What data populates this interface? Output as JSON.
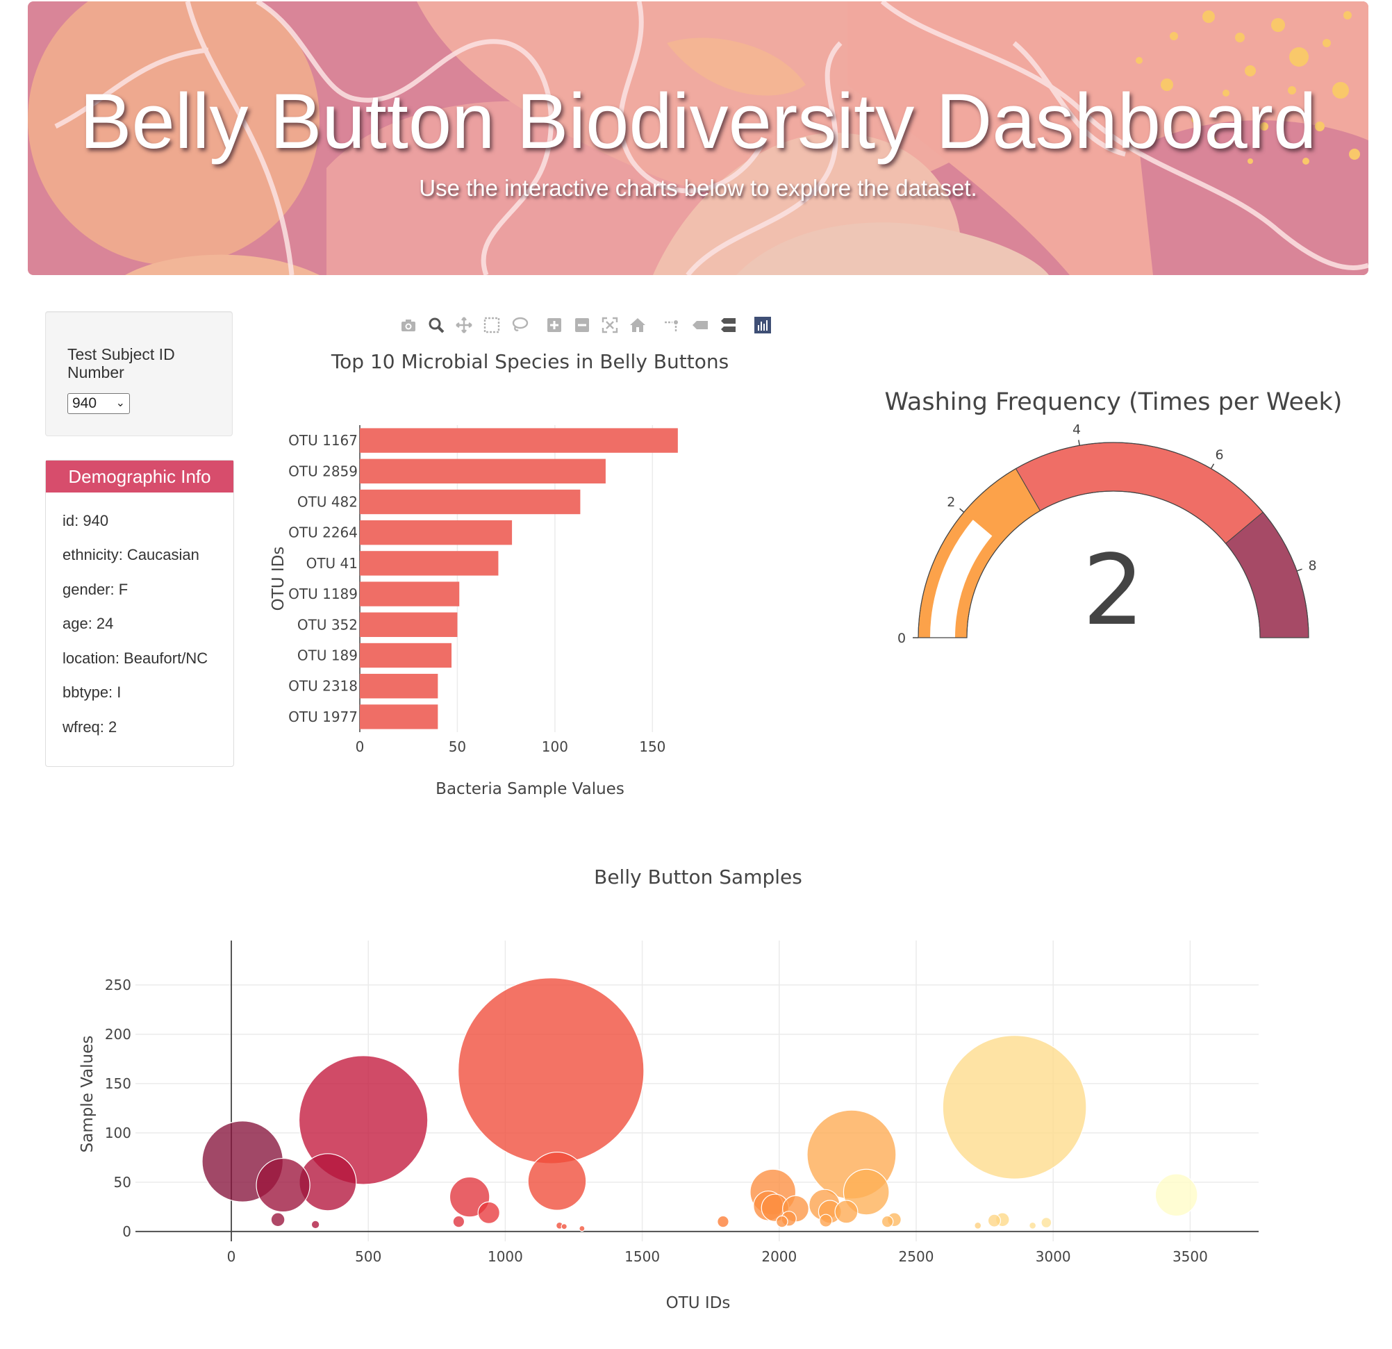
{
  "header": {
    "title": "Belly Button Biodiversity Dashboard",
    "subtitle": "Use the interactive charts below to explore the dataset."
  },
  "selector": {
    "label": "Test Subject ID Number",
    "selected": "940"
  },
  "demographics": {
    "title": "Demographic Info",
    "rows": [
      "id: 940",
      "ethnicity: Caucasian",
      "gender: F",
      "age: 24",
      "location: Beaufort/NC",
      "bbtype: I",
      "wfreq: 2"
    ]
  },
  "modebar": {
    "icons": [
      "camera-icon",
      "zoom-icon",
      "pan-icon",
      "box-select-icon",
      "lasso-select-icon",
      "zoom-in-icon",
      "zoom-out-icon",
      "autoscale-icon",
      "reset-axes-icon",
      "spike-lines-icon",
      "hover-closest-icon",
      "hover-compare-icon",
      "plotly-logo-icon"
    ]
  },
  "colors": {
    "bar": "#ef6e66",
    "banner_pink": "#d98598",
    "panel_header": "#d74d6c",
    "gauge_steps": [
      "#fca24a",
      "#ef6e66",
      "#a64a66"
    ],
    "gauge_bar": "#ffffff"
  },
  "chart_data": [
    {
      "type": "bar",
      "orientation": "h",
      "title": "Top 10 Microbial Species in Belly Buttons",
      "xlabel": "Bacteria Sample Values",
      "ylabel": "OTU IDs",
      "categories": [
        "OTU 1167",
        "OTU 2859",
        "OTU 482",
        "OTU 2264",
        "OTU 41",
        "OTU 1189",
        "OTU 352",
        "OTU 189",
        "OTU 2318",
        "OTU 1977"
      ],
      "values": [
        163,
        126,
        113,
        78,
        71,
        51,
        50,
        47,
        40,
        40
      ],
      "xticks": [
        0,
        50,
        100,
        150
      ],
      "xlim": [
        0,
        171.6
      ],
      "grid": true
    },
    {
      "type": "gauge",
      "title": "Washing Frequency (Times per Week)",
      "value": 2,
      "range": [
        0,
        9
      ],
      "ticks": [
        0,
        2,
        4,
        6,
        8
      ],
      "steps": [
        [
          0,
          3
        ],
        [
          3,
          7
        ],
        [
          7,
          9
        ]
      ]
    },
    {
      "type": "scatter",
      "mode": "bubble",
      "title": "Belly Button Samples",
      "xlabel": "OTU IDs",
      "ylabel": "Sample Values",
      "xticks": [
        0,
        500,
        1000,
        1500,
        2000,
        2500,
        3000,
        3500
      ],
      "yticks": [
        0,
        50,
        100,
        150,
        200,
        250
      ],
      "xlim": [
        -350,
        3750
      ],
      "ylim": [
        -10,
        295
      ],
      "grid": true,
      "colorscale": "YlOrRd-like (low OTU id = dark red, high = pale yellow)",
      "points": [
        {
          "x": 41,
          "y": 71
        },
        {
          "x": 189,
          "y": 47
        },
        {
          "x": 352,
          "y": 50
        },
        {
          "x": 482,
          "y": 113
        },
        {
          "x": 170,
          "y": 12
        },
        {
          "x": 307,
          "y": 7
        },
        {
          "x": 870,
          "y": 35
        },
        {
          "x": 940,
          "y": 19
        },
        {
          "x": 830,
          "y": 10
        },
        {
          "x": 1167,
          "y": 163
        },
        {
          "x": 1189,
          "y": 51
        },
        {
          "x": 1198,
          "y": 6
        },
        {
          "x": 1215,
          "y": 5
        },
        {
          "x": 1280,
          "y": 3
        },
        {
          "x": 1795,
          "y": 10
        },
        {
          "x": 1977,
          "y": 40
        },
        {
          "x": 1960,
          "y": 26
        },
        {
          "x": 1985,
          "y": 24
        },
        {
          "x": 2060,
          "y": 23
        },
        {
          "x": 2010,
          "y": 10
        },
        {
          "x": 2035,
          "y": 13
        },
        {
          "x": 2165,
          "y": 27
        },
        {
          "x": 2185,
          "y": 20
        },
        {
          "x": 2170,
          "y": 11
        },
        {
          "x": 2264,
          "y": 78
        },
        {
          "x": 2245,
          "y": 20
        },
        {
          "x": 2318,
          "y": 40
        },
        {
          "x": 2395,
          "y": 10
        },
        {
          "x": 2420,
          "y": 12
        },
        {
          "x": 2725,
          "y": 6
        },
        {
          "x": 2785,
          "y": 11
        },
        {
          "x": 2815,
          "y": 12
        },
        {
          "x": 2859,
          "y": 126
        },
        {
          "x": 2925,
          "y": 6
        },
        {
          "x": 2975,
          "y": 9
        },
        {
          "x": 3450,
          "y": 37
        }
      ]
    }
  ]
}
